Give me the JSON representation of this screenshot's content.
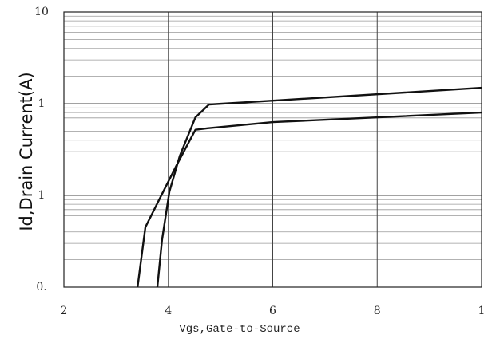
{
  "chart_data": {
    "type": "line",
    "x_label": "Vgs,Gate-to-Source",
    "y_label": "Id,Drain Current(A)",
    "xlim": [
      2,
      10
    ],
    "xticks": [
      2,
      4,
      6,
      8,
      {
        "value": 10,
        "label": "1"
      }
    ],
    "ylim": [
      0.01,
      10
    ],
    "yticks": [
      10,
      1,
      {
        "value": 0.1,
        "label": "1"
      },
      {
        "value": 0.01,
        "label": "0."
      }
    ],
    "log_y": true,
    "grid": true,
    "minor_grid": true,
    "series": [
      {
        "color": "#111111",
        "x": [
          3.41,
          3.56,
          3.83,
          4.17,
          4.52,
          4.75,
          6.0,
          10
        ],
        "values": [
          0.01,
          0.045,
          0.091,
          0.22,
          0.52,
          0.54,
          0.63,
          0.8
        ]
      },
      {
        "color": "#111111",
        "x": [
          3.79,
          3.88,
          4.02,
          4.22,
          4.52,
          4.78,
          6.0,
          10
        ],
        "values": [
          0.01,
          0.033,
          0.11,
          0.27,
          0.71,
          0.98,
          1.08,
          1.49
        ]
      }
    ]
  }
}
